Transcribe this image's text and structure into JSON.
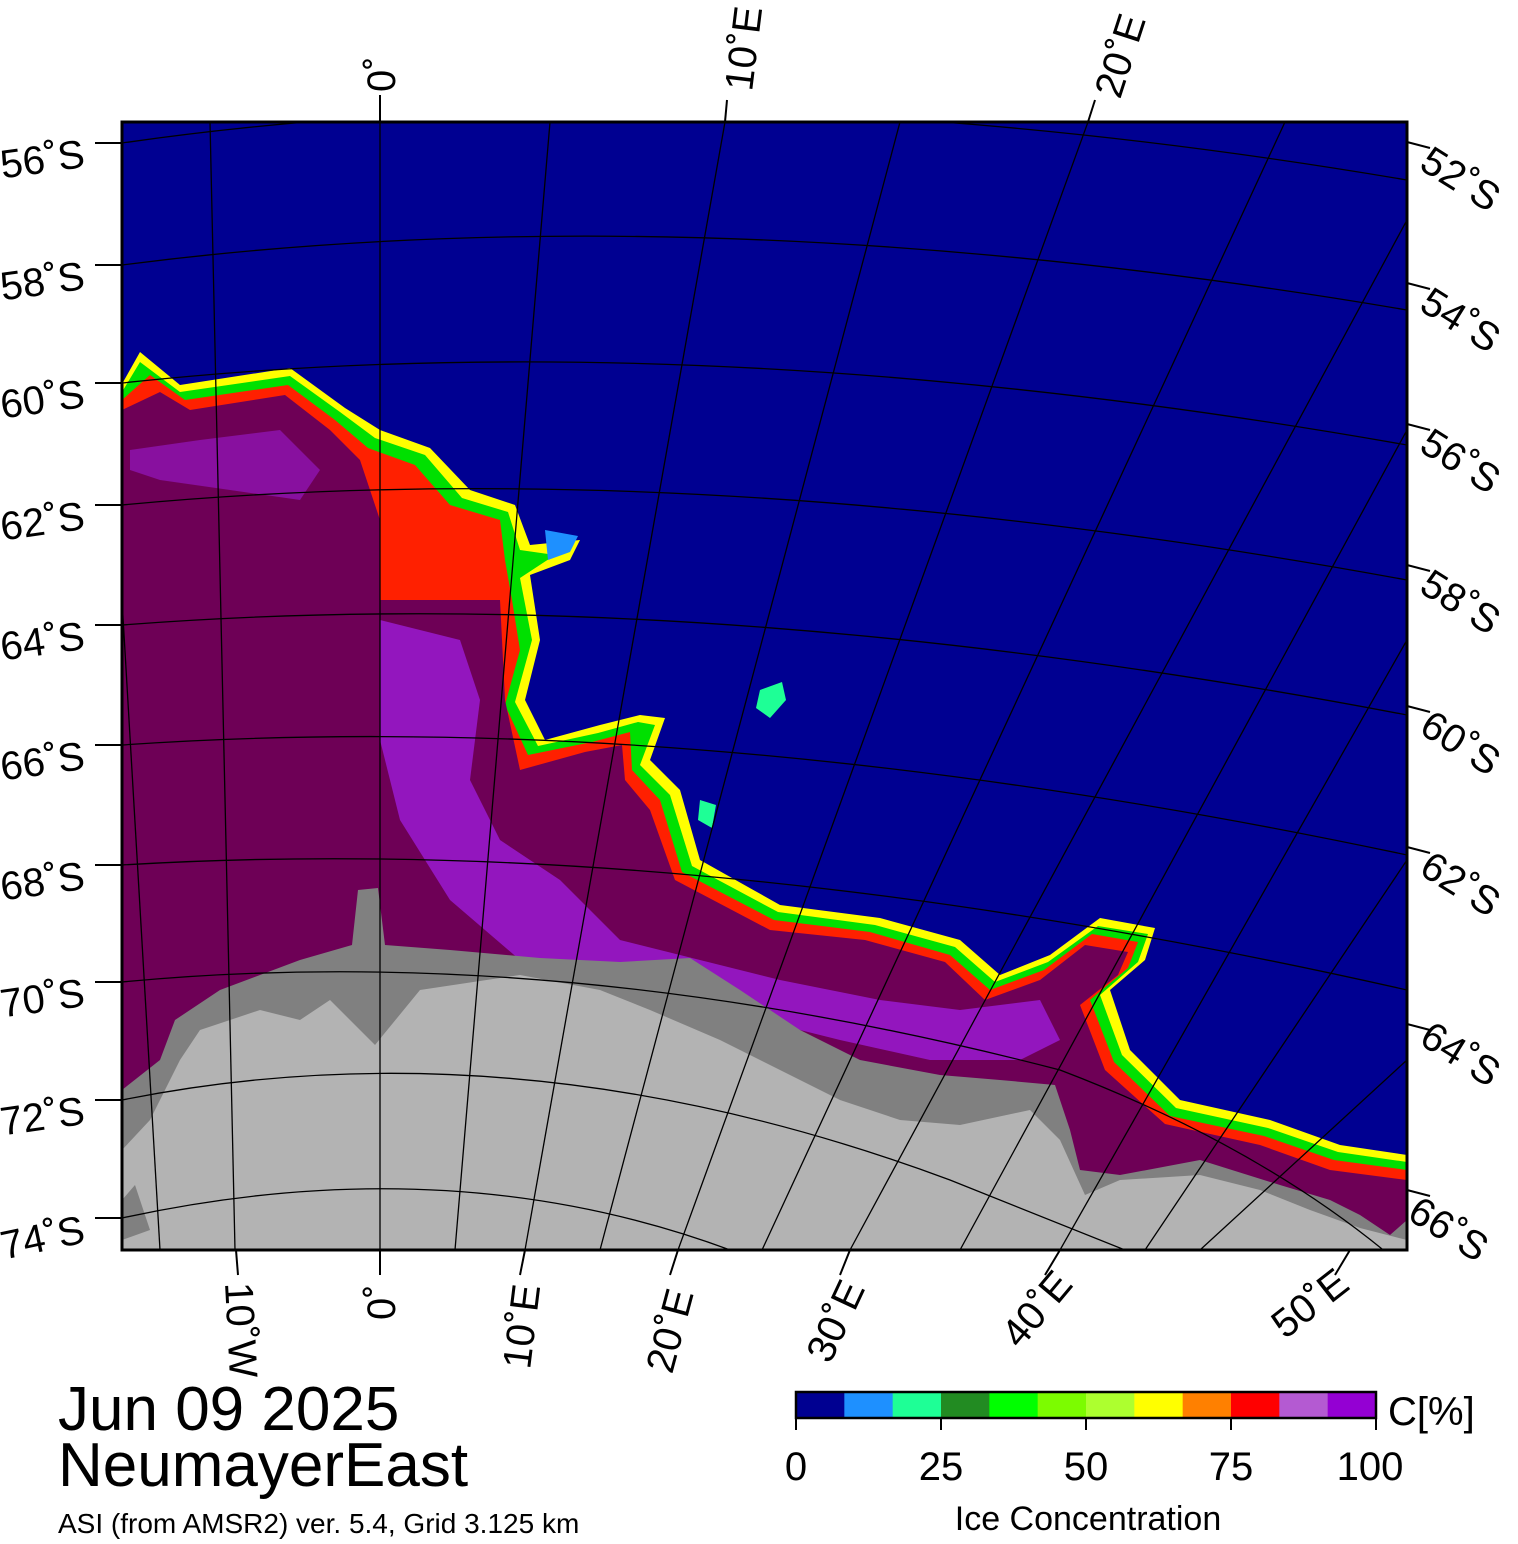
{
  "map": {
    "date": "Jun 09 2025",
    "region": "NeumayerEast",
    "source": "ASI (from AMSR2) ver. 5.4,  Grid 3.125 km",
    "colors": {
      "open_water": "#000091",
      "ice_dense": "#6e0056",
      "ice_purple": "#9a1ad0",
      "ice_shelf": "#808080",
      "land": "#b3b3b3"
    },
    "lat_labels_left": [
      "56˚S",
      "58˚S",
      "60˚S",
      "62˚S",
      "64˚S",
      "66˚S",
      "68˚S",
      "70˚S",
      "72˚S",
      "74˚S"
    ],
    "lat_labels_right": [
      "52˚S",
      "54˚S",
      "56˚S",
      "58˚S",
      "60˚S",
      "62˚S",
      "64˚S",
      "66˚S"
    ],
    "lon_labels_top": [
      "0˚",
      "10˚E",
      "20˚E"
    ],
    "lon_labels_bottom": [
      "10˚W",
      "0˚",
      "10˚E",
      "20˚E",
      "30˚E",
      "40˚E",
      "50˚E"
    ]
  },
  "colorbar": {
    "unit_label": "C[%]",
    "title": "Ice Concentration",
    "ticks": [
      "0",
      "25",
      "50",
      "75",
      "100"
    ],
    "colors": [
      "#000091",
      "#1e90ff",
      "#1eff96",
      "#228b22",
      "#00ff00",
      "#7cfc00",
      "#adff2f",
      "#ffff00",
      "#ff8000",
      "#ff0000",
      "#b45ad2",
      "#9400d3"
    ]
  }
}
